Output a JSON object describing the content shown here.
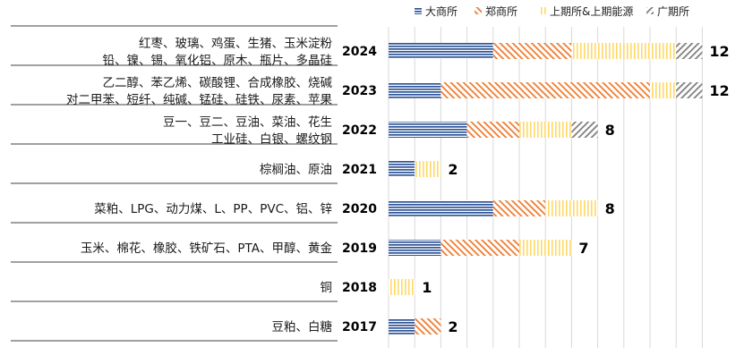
{
  "colors": {
    "dce": "#2f5597",
    "czce": "#ed7d31",
    "shfe_ine": "#ffd966",
    "gfex": "#7f7f7f",
    "grid": "#d9d9d9",
    "separator": "#404040"
  },
  "chart_data": {
    "type": "bar",
    "orientation": "horizontal",
    "stacked": true,
    "title": "",
    "xlabel": "",
    "ylabel": "",
    "xlim": [
      0,
      13
    ],
    "grid": true,
    "legend_position": "top-right",
    "series": [
      {
        "key": "dce",
        "name": "大商所",
        "pattern": "horizontal-lines",
        "values": [
          4,
          2,
          3,
          1,
          4,
          2,
          0,
          1
        ]
      },
      {
        "key": "czce",
        "name": "郑商所",
        "pattern": "diagonal-lines",
        "values": [
          3,
          8,
          2,
          0,
          2,
          3,
          0,
          1
        ]
      },
      {
        "key": "shfe_ine",
        "name": "上期所&上期能源",
        "pattern": "vertical-lines",
        "values": [
          4,
          1,
          2,
          1,
          2,
          2,
          1,
          0
        ]
      },
      {
        "key": "gfex",
        "name": "广期所",
        "pattern": "back-diagonal-lines",
        "values": [
          1,
          1,
          1,
          0,
          0,
          0,
          0,
          0
        ]
      }
    ],
    "rows": [
      {
        "year": "2024",
        "total": "12",
        "products": [
          "红枣、玻璃、鸡蛋、生猪、玉米淀粉",
          "铅、镍、锡、氧化铝、原木、瓶片、多晶硅"
        ]
      },
      {
        "year": "2023",
        "total": "12",
        "products": [
          "乙二醇、苯乙烯、碳酸锂、合成橡胶、烧碱",
          "对二甲苯、短纤、纯碱、锰硅、硅铁、尿素、苹果"
        ]
      },
      {
        "year": "2022",
        "total": "8",
        "products": [
          "豆一、豆二、豆油、菜油、花生",
          "工业硅、白银、螺纹钢"
        ]
      },
      {
        "year": "2021",
        "total": "2",
        "products": [
          "棕榈油、原油"
        ]
      },
      {
        "year": "2020",
        "total": "8",
        "products": [
          "菜粕、LPG、动力煤、L、PP、PVC、铝、锌"
        ]
      },
      {
        "year": "2019",
        "total": "7",
        "products": [
          "玉米、棉花、橡胶、铁矿石、PTA、甲醇、黄金"
        ]
      },
      {
        "year": "2018",
        "total": "1",
        "products": [
          "铜"
        ]
      },
      {
        "year": "2017",
        "total": "2",
        "products": [
          "豆粕、白糖"
        ]
      }
    ]
  }
}
